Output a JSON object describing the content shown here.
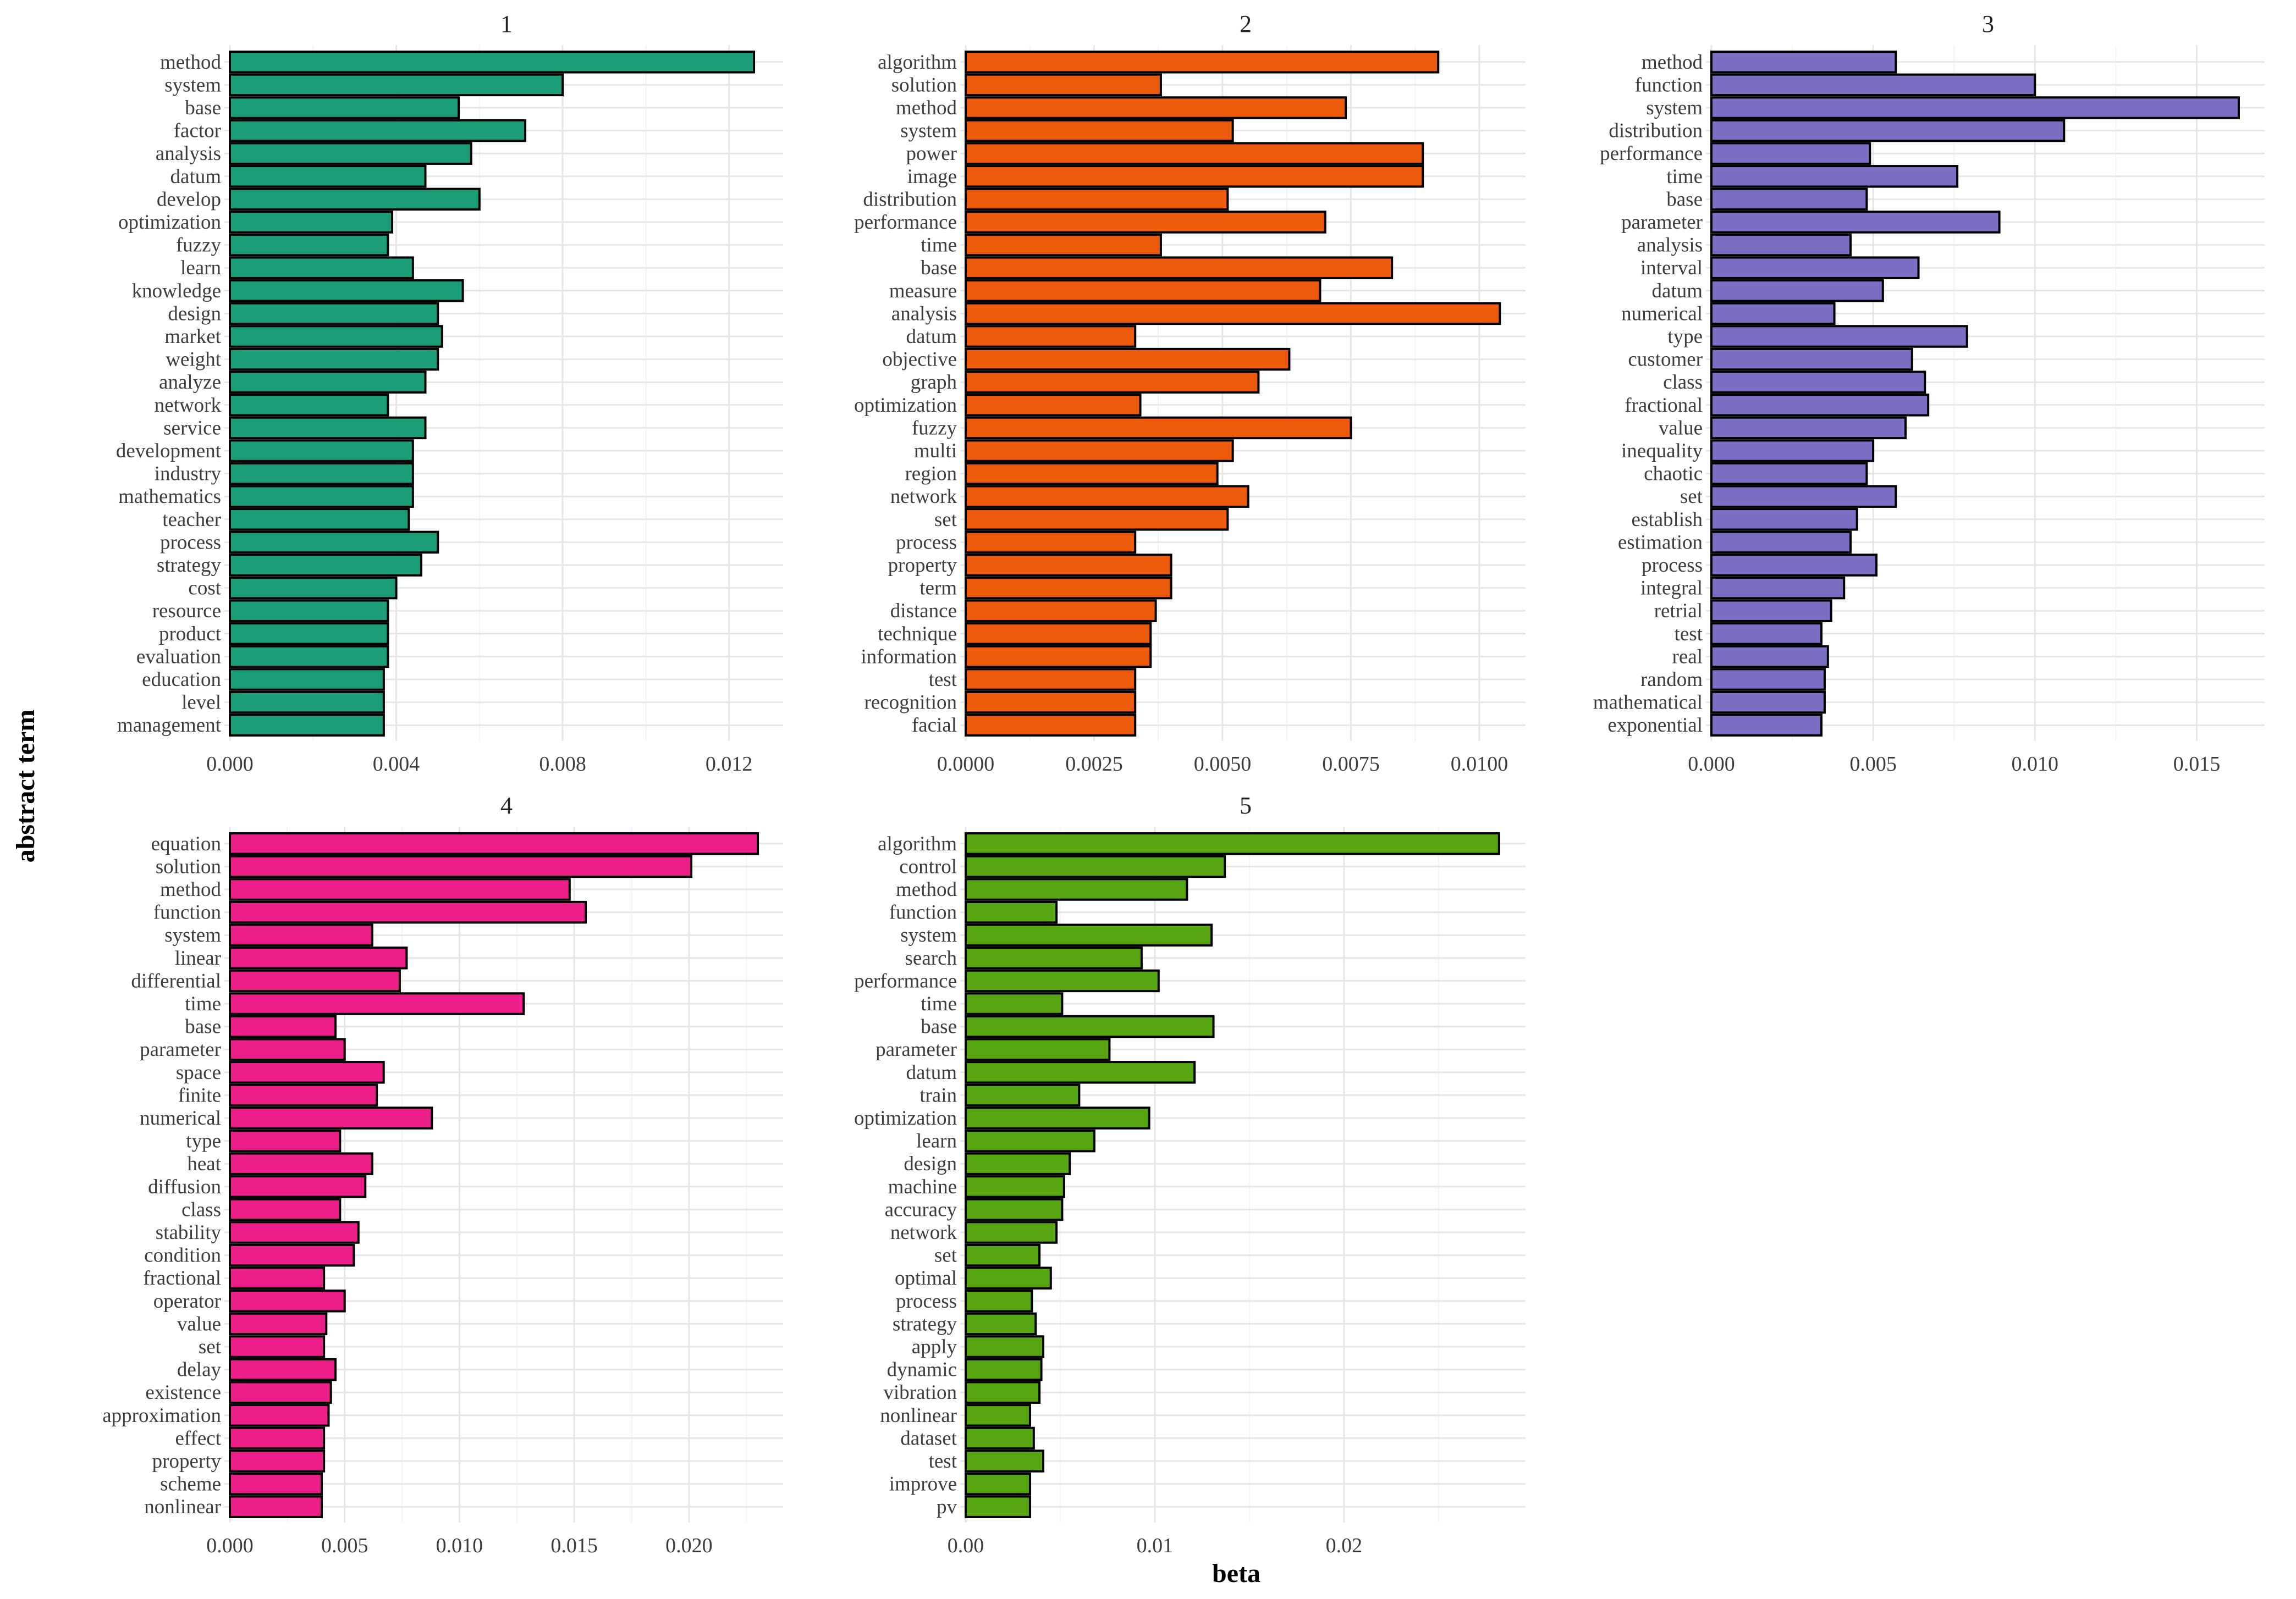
{
  "chart_data": [
    {
      "type": "bar",
      "orientation": "horizontal",
      "title": "1",
      "color": "#1B9E77",
      "categories": [
        "method",
        "system",
        "base",
        "factor",
        "analysis",
        "datum",
        "develop",
        "optimization",
        "fuzzy",
        "learn",
        "knowledge",
        "design",
        "market",
        "weight",
        "analyze",
        "network",
        "service",
        "development",
        "industry",
        "mathematics",
        "teacher",
        "process",
        "strategy",
        "cost",
        "resource",
        "product",
        "evaluation",
        "education",
        "level",
        "management"
      ],
      "values": [
        0.0126,
        0.008,
        0.0055,
        0.0071,
        0.0058,
        0.0047,
        0.006,
        0.0039,
        0.0038,
        0.0044,
        0.0056,
        0.005,
        0.0051,
        0.005,
        0.0047,
        0.0038,
        0.0047,
        0.0044,
        0.0044,
        0.0044,
        0.0043,
        0.005,
        0.0046,
        0.004,
        0.0038,
        0.0038,
        0.0038,
        0.0037,
        0.0037,
        0.0037
      ],
      "xlim": [
        0,
        0.0133
      ],
      "ticks": [
        0,
        0.004,
        0.008,
        0.012
      ],
      "tick_labels": [
        "0.000",
        "0.004",
        "0.008",
        "0.012"
      ]
    },
    {
      "type": "bar",
      "orientation": "horizontal",
      "title": "2",
      "color": "#EC5A0C",
      "categories": [
        "algorithm",
        "solution",
        "method",
        "system",
        "power",
        "image",
        "distribution",
        "performance",
        "time",
        "base",
        "measure",
        "analysis",
        "datum",
        "objective",
        "graph",
        "optimization",
        "fuzzy",
        "multi",
        "region",
        "network",
        "set",
        "process",
        "property",
        "term",
        "distance",
        "technique",
        "information",
        "test",
        "recognition",
        "facial"
      ],
      "values": [
        0.0092,
        0.0038,
        0.0074,
        0.0052,
        0.0089,
        0.0089,
        0.0051,
        0.007,
        0.0038,
        0.0083,
        0.0069,
        0.0104,
        0.0033,
        0.0063,
        0.0057,
        0.0034,
        0.0075,
        0.0052,
        0.0049,
        0.0055,
        0.0051,
        0.0033,
        0.004,
        0.004,
        0.0037,
        0.0036,
        0.0036,
        0.0033,
        0.0033,
        0.0033
      ],
      "xlim": [
        0,
        0.0109
      ],
      "ticks": [
        0,
        0.0025,
        0.005,
        0.0075,
        0.01
      ],
      "tick_labels": [
        "0.0000",
        "0.0025",
        "0.0050",
        "0.0075",
        "0.0100"
      ]
    },
    {
      "type": "bar",
      "orientation": "horizontal",
      "title": "3",
      "color": "#7A6FC2",
      "categories": [
        "method",
        "function",
        "system",
        "distribution",
        "performance",
        "time",
        "base",
        "parameter",
        "analysis",
        "interval",
        "datum",
        "numerical",
        "type",
        "customer",
        "class",
        "fractional",
        "value",
        "inequality",
        "chaotic",
        "set",
        "establish",
        "estimation",
        "process",
        "integral",
        "retrial",
        "test",
        "real",
        "random",
        "mathematical",
        "exponential"
      ],
      "values": [
        0.0057,
        0.01,
        0.0163,
        0.0109,
        0.0049,
        0.0076,
        0.0048,
        0.0089,
        0.0043,
        0.0064,
        0.0053,
        0.0038,
        0.0079,
        0.0062,
        0.0066,
        0.0067,
        0.006,
        0.005,
        0.0048,
        0.0057,
        0.0045,
        0.0043,
        0.0051,
        0.0041,
        0.0037,
        0.0034,
        0.0036,
        0.0035,
        0.0035,
        0.0034
      ],
      "xlim": [
        0,
        0.0171
      ],
      "ticks": [
        0,
        0.005,
        0.01,
        0.015
      ],
      "tick_labels": [
        "0.000",
        "0.005",
        "0.010",
        "0.015"
      ]
    },
    {
      "type": "bar",
      "orientation": "horizontal",
      "title": "4",
      "color": "#EC1E87",
      "categories": [
        "equation",
        "solution",
        "method",
        "function",
        "system",
        "linear",
        "differential",
        "time",
        "base",
        "parameter",
        "space",
        "finite",
        "numerical",
        "type",
        "heat",
        "diffusion",
        "class",
        "stability",
        "condition",
        "fractional",
        "operator",
        "value",
        "set",
        "delay",
        "existence",
        "approximation",
        "effect",
        "property",
        "scheme",
        "nonlinear"
      ],
      "values": [
        0.023,
        0.0201,
        0.0148,
        0.0155,
        0.0062,
        0.0077,
        0.0074,
        0.0128,
        0.0046,
        0.005,
        0.0067,
        0.0064,
        0.0088,
        0.0048,
        0.0062,
        0.0059,
        0.0048,
        0.0056,
        0.0054,
        0.0041,
        0.005,
        0.0042,
        0.0041,
        0.0046,
        0.0044,
        0.0043,
        0.0041,
        0.0041,
        0.004,
        0.004
      ],
      "xlim": [
        0,
        0.0241
      ],
      "ticks": [
        0,
        0.005,
        0.01,
        0.015,
        0.02
      ],
      "tick_labels": [
        "0.000",
        "0.005",
        "0.010",
        "0.015",
        "0.020"
      ]
    },
    {
      "type": "bar",
      "orientation": "horizontal",
      "title": "5",
      "color": "#57A611",
      "categories": [
        "algorithm",
        "control",
        "method",
        "function",
        "system",
        "search",
        "performance",
        "time",
        "base",
        "parameter",
        "datum",
        "train",
        "optimization",
        "learn",
        "design",
        "machine",
        "accuracy",
        "network",
        "set",
        "optimal",
        "process",
        "strategy",
        "apply",
        "dynamic",
        "vibration",
        "nonlinear",
        "dataset",
        "test",
        "improve",
        "pv"
      ],
      "values": [
        0.0282,
        0.0137,
        0.0117,
        0.0048,
        0.013,
        0.0093,
        0.0102,
        0.0051,
        0.0131,
        0.0076,
        0.0121,
        0.006,
        0.0097,
        0.0068,
        0.0055,
        0.0052,
        0.0051,
        0.0048,
        0.0039,
        0.0045,
        0.0035,
        0.0037,
        0.0041,
        0.004,
        0.0039,
        0.0034,
        0.0036,
        0.0041,
        0.0034,
        0.0034
      ],
      "xlim": [
        0,
        0.0296
      ],
      "ticks": [
        0,
        0.01,
        0.02
      ],
      "tick_labels": [
        "0.00",
        "0.01",
        "0.02"
      ]
    }
  ],
  "axes": {
    "xlabel": "beta",
    "ylabel": "abstract term"
  }
}
